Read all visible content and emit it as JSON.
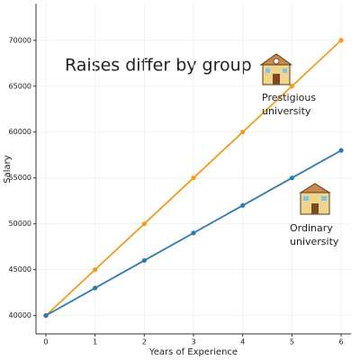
{
  "chart_data": {
    "type": "line",
    "title": "Raises differ by group",
    "x_label": "Years of Experience",
    "y_label": "Salary",
    "x": [
      0,
      1,
      2,
      3,
      4,
      5,
      6
    ],
    "series": [
      {
        "name": "Prestigious university",
        "color": "#f39c1e",
        "values": [
          40000,
          45000,
          50000,
          55000,
          60000,
          65000,
          70000
        ]
      },
      {
        "name": "Ordinary university",
        "color": "#2e7bb0",
        "values": [
          40000,
          43000,
          46000,
          49000,
          52000,
          55000,
          58000
        ]
      }
    ],
    "annotations": [
      [
        "Prestigious",
        "university"
      ],
      [
        "Ordinary",
        "university"
      ]
    ],
    "xlim": [
      -0.2,
      6.2
    ],
    "xticks": [
      0,
      1,
      2,
      3,
      4,
      5,
      6
    ],
    "ylim": [
      38000,
      74000
    ],
    "yticks": [
      40000,
      45000,
      50000,
      55000,
      60000,
      65000,
      70000
    ],
    "grid": true
  }
}
